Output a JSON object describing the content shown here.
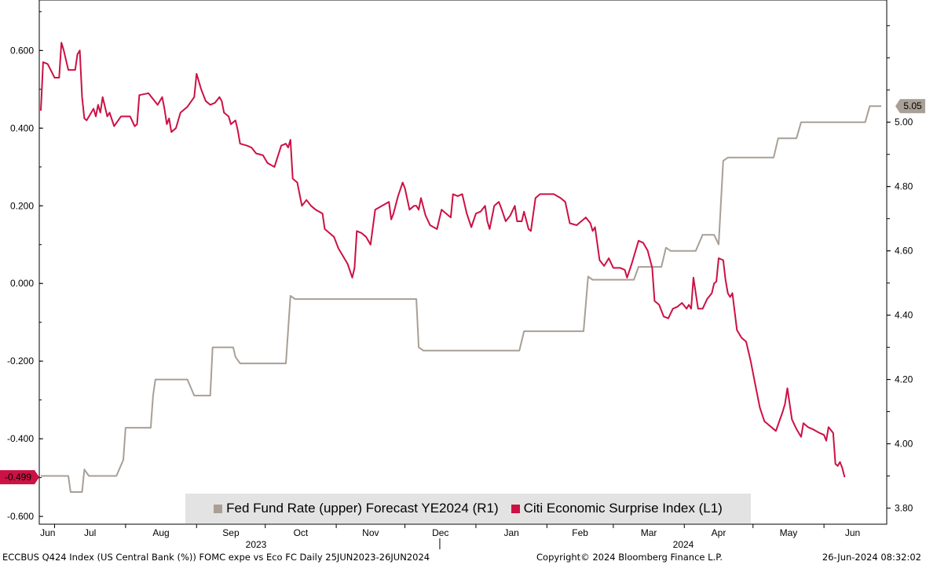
{
  "chart_data": {
    "type": "line",
    "left_axis": {
      "ylim": [
        -0.62,
        0.73
      ],
      "ticks": [
        "0.600",
        "0.400",
        "0.200",
        "0.000",
        "-0.200",
        "-0.400",
        "-0.600"
      ],
      "tick_values": [
        0.6,
        0.4,
        0.2,
        0.0,
        -0.2,
        -0.4,
        -0.6
      ]
    },
    "right_axis": {
      "ylim": [
        3.75,
        5.38
      ],
      "ticks": [
        "5.00",
        "4.80",
        "4.60",
        "4.40",
        "4.20",
        "4.00",
        "3.80"
      ],
      "tick_values": [
        5.0,
        4.8,
        4.6,
        4.4,
        4.2,
        4.0,
        3.8
      ]
    },
    "x_axis": {
      "months": [
        "Jun",
        "Jul",
        "Aug",
        "Sep",
        "Oct",
        "Nov",
        "Dec",
        "Jan",
        "Feb",
        "Mar",
        "Apr",
        "May",
        "Jun"
      ],
      "years": [
        "2023",
        "2024"
      ],
      "start": "2023-06-25",
      "end": "2024-06-26"
    },
    "series": [
      {
        "name": "Fed Fund Rate (upper) Forecast YE2024 (R1)",
        "axis": "right",
        "color": "#a89f96",
        "points": [
          [
            "2023-06-25",
            3.9
          ],
          [
            "2023-07-07",
            3.9
          ],
          [
            "2023-07-08",
            3.85
          ],
          [
            "2023-07-13",
            3.85
          ],
          [
            "2023-07-14",
            3.92
          ],
          [
            "2023-07-16",
            3.9
          ],
          [
            "2023-07-28",
            3.9
          ],
          [
            "2023-07-31",
            3.95
          ],
          [
            "2023-08-01",
            4.05
          ],
          [
            "2023-08-12",
            4.05
          ],
          [
            "2023-08-13",
            4.15
          ],
          [
            "2023-08-14",
            4.2
          ],
          [
            "2023-08-28",
            4.2
          ],
          [
            "2023-08-31",
            4.15
          ],
          [
            "2023-09-07",
            4.15
          ],
          [
            "2023-09-08",
            4.3
          ],
          [
            "2023-09-17",
            4.3
          ],
          [
            "2023-09-18",
            4.27
          ],
          [
            "2023-09-20",
            4.25
          ],
          [
            "2023-10-10",
            4.25
          ],
          [
            "2023-10-12",
            4.46
          ],
          [
            "2023-10-14",
            4.45
          ],
          [
            "2023-12-06",
            4.45
          ],
          [
            "2023-12-07",
            4.3
          ],
          [
            "2023-12-09",
            4.29
          ],
          [
            "2024-01-20",
            4.29
          ],
          [
            "2024-01-22",
            4.35
          ],
          [
            "2024-02-17",
            4.35
          ],
          [
            "2024-02-19",
            4.52
          ],
          [
            "2024-02-21",
            4.51
          ],
          [
            "2024-03-10",
            4.51
          ],
          [
            "2024-03-12",
            4.55
          ],
          [
            "2024-03-22",
            4.55
          ],
          [
            "2024-03-24",
            4.61
          ],
          [
            "2024-03-26",
            4.6
          ],
          [
            "2024-04-06",
            4.6
          ],
          [
            "2024-04-09",
            4.65
          ],
          [
            "2024-04-14",
            4.65
          ],
          [
            "2024-04-16",
            4.62
          ],
          [
            "2024-04-18",
            4.88
          ],
          [
            "2024-04-20",
            4.89
          ],
          [
            "2024-05-10",
            4.89
          ],
          [
            "2024-05-12",
            4.95
          ],
          [
            "2024-05-20",
            4.95
          ],
          [
            "2024-05-22",
            5.0
          ],
          [
            "2024-06-19",
            5.0
          ],
          [
            "2024-06-21",
            5.05
          ],
          [
            "2024-06-26",
            5.05
          ]
        ],
        "last_value_label": "5.05"
      },
      {
        "name": "Citi Economic Surprise Index (L1)",
        "axis": "left",
        "color": "#cc1144",
        "points": [
          [
            "2023-06-25",
            0.445
          ],
          [
            "2023-06-26",
            0.57
          ],
          [
            "2023-06-28",
            0.565
          ],
          [
            "2023-07-01",
            0.53
          ],
          [
            "2023-07-03",
            0.53
          ],
          [
            "2023-07-04",
            0.62
          ],
          [
            "2023-07-05",
            0.6
          ],
          [
            "2023-07-07",
            0.55
          ],
          [
            "2023-07-10",
            0.55
          ],
          [
            "2023-07-11",
            0.59
          ],
          [
            "2023-07-12",
            0.6
          ],
          [
            "2023-07-13",
            0.48
          ],
          [
            "2023-07-14",
            0.425
          ],
          [
            "2023-07-15",
            0.42
          ],
          [
            "2023-07-18",
            0.45
          ],
          [
            "2023-07-19",
            0.43
          ],
          [
            "2023-07-20",
            0.46
          ],
          [
            "2023-07-21",
            0.44
          ],
          [
            "2023-07-22",
            0.48
          ],
          [
            "2023-07-24",
            0.43
          ],
          [
            "2023-07-25",
            0.44
          ],
          [
            "2023-07-27",
            0.405
          ],
          [
            "2023-07-30",
            0.43
          ],
          [
            "2023-08-03",
            0.43
          ],
          [
            "2023-08-05",
            0.405
          ],
          [
            "2023-08-06",
            0.41
          ],
          [
            "2023-08-07",
            0.485
          ],
          [
            "2023-08-11",
            0.49
          ],
          [
            "2023-08-13",
            0.475
          ],
          [
            "2023-08-15",
            0.46
          ],
          [
            "2023-08-17",
            0.48
          ],
          [
            "2023-08-18",
            0.45
          ],
          [
            "2023-08-19",
            0.41
          ],
          [
            "2023-08-20",
            0.425
          ],
          [
            "2023-08-21",
            0.39
          ],
          [
            "2023-08-23",
            0.4
          ],
          [
            "2023-08-25",
            0.44
          ],
          [
            "2023-08-28",
            0.455
          ],
          [
            "2023-08-31",
            0.48
          ],
          [
            "2023-09-01",
            0.54
          ],
          [
            "2023-09-03",
            0.5
          ],
          [
            "2023-09-05",
            0.47
          ],
          [
            "2023-09-07",
            0.46
          ],
          [
            "2023-09-09",
            0.465
          ],
          [
            "2023-09-11",
            0.48
          ],
          [
            "2023-09-12",
            0.47
          ],
          [
            "2023-09-13",
            0.44
          ],
          [
            "2023-09-15",
            0.43
          ],
          [
            "2023-09-16",
            0.41
          ],
          [
            "2023-09-18",
            0.42
          ],
          [
            "2023-09-19",
            0.395
          ],
          [
            "2023-09-20",
            0.36
          ],
          [
            "2023-09-23",
            0.355
          ],
          [
            "2023-09-25",
            0.35
          ],
          [
            "2023-09-27",
            0.335
          ],
          [
            "2023-09-30",
            0.33
          ],
          [
            "2023-10-02",
            0.31
          ],
          [
            "2023-10-05",
            0.3
          ],
          [
            "2023-10-08",
            0.355
          ],
          [
            "2023-10-10",
            0.36
          ],
          [
            "2023-10-11",
            0.35
          ],
          [
            "2023-10-12",
            0.37
          ],
          [
            "2023-10-13",
            0.27
          ],
          [
            "2023-10-15",
            0.26
          ],
          [
            "2023-10-17",
            0.2
          ],
          [
            "2023-10-19",
            0.215
          ],
          [
            "2023-10-21",
            0.2
          ],
          [
            "2023-10-23",
            0.19
          ],
          [
            "2023-10-26",
            0.18
          ],
          [
            "2023-10-27",
            0.14
          ],
          [
            "2023-10-29",
            0.13
          ],
          [
            "2023-10-31",
            0.12
          ],
          [
            "2023-11-02",
            0.09
          ],
          [
            "2023-11-04",
            0.07
          ],
          [
            "2023-11-06",
            0.05
          ],
          [
            "2023-11-08",
            0.015
          ],
          [
            "2023-11-09",
            0.04
          ],
          [
            "2023-11-10",
            0.135
          ],
          [
            "2023-11-12",
            0.13
          ],
          [
            "2023-11-14",
            0.12
          ],
          [
            "2023-11-16",
            0.1
          ],
          [
            "2023-11-18",
            0.19
          ],
          [
            "2023-11-21",
            0.2
          ],
          [
            "2023-11-24",
            0.21
          ],
          [
            "2023-11-25",
            0.165
          ],
          [
            "2023-11-26",
            0.18
          ],
          [
            "2023-11-28",
            0.225
          ],
          [
            "2023-11-30",
            0.26
          ],
          [
            "2023-12-01",
            0.245
          ],
          [
            "2023-12-03",
            0.19
          ],
          [
            "2023-12-05",
            0.2
          ],
          [
            "2023-12-06",
            0.2
          ],
          [
            "2023-12-07",
            0.19
          ],
          [
            "2023-12-08",
            0.22
          ],
          [
            "2023-12-10",
            0.175
          ],
          [
            "2023-12-12",
            0.15
          ],
          [
            "2023-12-15",
            0.14
          ],
          [
            "2023-12-17",
            0.19
          ],
          [
            "2023-12-19",
            0.18
          ],
          [
            "2023-12-21",
            0.17
          ],
          [
            "2023-12-22",
            0.23
          ],
          [
            "2023-12-24",
            0.225
          ],
          [
            "2023-12-26",
            0.23
          ],
          [
            "2023-12-28",
            0.18
          ],
          [
            "2023-12-30",
            0.145
          ],
          [
            "2024-01-01",
            0.18
          ],
          [
            "2024-01-03",
            0.185
          ],
          [
            "2024-01-05",
            0.2
          ],
          [
            "2024-01-06",
            0.16
          ],
          [
            "2024-01-07",
            0.14
          ],
          [
            "2024-01-09",
            0.2
          ],
          [
            "2024-01-11",
            0.21
          ],
          [
            "2024-01-12",
            0.195
          ],
          [
            "2024-01-14",
            0.16
          ],
          [
            "2024-01-16",
            0.175
          ],
          [
            "2024-01-18",
            0.2
          ],
          [
            "2024-01-19",
            0.16
          ],
          [
            "2024-01-21",
            0.16
          ],
          [
            "2024-01-22",
            0.185
          ],
          [
            "2024-01-24",
            0.14
          ],
          [
            "2024-01-25",
            0.135
          ],
          [
            "2024-01-27",
            0.22
          ],
          [
            "2024-01-29",
            0.23
          ],
          [
            "2024-02-01",
            0.23
          ],
          [
            "2024-02-04",
            0.23
          ],
          [
            "2024-02-07",
            0.22
          ],
          [
            "2024-02-09",
            0.21
          ],
          [
            "2024-02-11",
            0.155
          ],
          [
            "2024-02-14",
            0.15
          ],
          [
            "2024-02-16",
            0.16
          ],
          [
            "2024-02-18",
            0.17
          ],
          [
            "2024-02-20",
            0.155
          ],
          [
            "2024-02-21",
            0.135
          ],
          [
            "2024-02-22",
            0.145
          ],
          [
            "2024-02-24",
            0.06
          ],
          [
            "2024-02-26",
            0.045
          ],
          [
            "2024-02-28",
            0.065
          ],
          [
            "2024-03-01",
            0.04
          ],
          [
            "2024-03-04",
            0.04
          ],
          [
            "2024-03-06",
            0.035
          ],
          [
            "2024-03-07",
            0.015
          ],
          [
            "2024-03-09",
            0.05
          ],
          [
            "2024-03-12",
            0.11
          ],
          [
            "2024-03-14",
            0.105
          ],
          [
            "2024-03-16",
            0.085
          ],
          [
            "2024-03-18",
            0.04
          ],
          [
            "2024-03-19",
            -0.045
          ],
          [
            "2024-03-21",
            -0.055
          ],
          [
            "2024-03-23",
            -0.085
          ],
          [
            "2024-03-25",
            -0.09
          ],
          [
            "2024-03-27",
            -0.065
          ],
          [
            "2024-03-29",
            -0.06
          ],
          [
            "2024-03-31",
            -0.05
          ],
          [
            "2024-04-02",
            -0.065
          ],
          [
            "2024-04-03",
            -0.055
          ],
          [
            "2024-04-04",
            -0.065
          ],
          [
            "2024-04-05",
            0.015
          ],
          [
            "2024-04-07",
            -0.065
          ],
          [
            "2024-04-09",
            -0.065
          ],
          [
            "2024-04-11",
            -0.04
          ],
          [
            "2024-04-13",
            -0.025
          ],
          [
            "2024-04-14",
            0.0
          ],
          [
            "2024-04-15",
            0.005
          ],
          [
            "2024-04-16",
            0.065
          ],
          [
            "2024-04-18",
            0.06
          ],
          [
            "2024-04-19",
            0.01
          ],
          [
            "2024-04-20",
            -0.025
          ],
          [
            "2024-04-21",
            -0.035
          ],
          [
            "2024-04-22",
            -0.025
          ],
          [
            "2024-04-24",
            -0.12
          ],
          [
            "2024-04-26",
            -0.14
          ],
          [
            "2024-04-28",
            -0.15
          ],
          [
            "2024-04-30",
            -0.2
          ],
          [
            "2024-05-02",
            -0.26
          ],
          [
            "2024-05-04",
            -0.32
          ],
          [
            "2024-05-06",
            -0.355
          ],
          [
            "2024-05-09",
            -0.37
          ],
          [
            "2024-05-11",
            -0.38
          ],
          [
            "2024-05-14",
            -0.33
          ],
          [
            "2024-05-15",
            -0.31
          ],
          [
            "2024-05-16",
            -0.27
          ],
          [
            "2024-05-18",
            -0.35
          ],
          [
            "2024-05-20",
            -0.375
          ],
          [
            "2024-05-22",
            -0.395
          ],
          [
            "2024-05-23",
            -0.36
          ],
          [
            "2024-05-25",
            -0.37
          ],
          [
            "2024-05-27",
            -0.375
          ],
          [
            "2024-05-30",
            -0.385
          ],
          [
            "2024-06-01",
            -0.39
          ],
          [
            "2024-06-02",
            -0.405
          ],
          [
            "2024-06-03",
            -0.37
          ],
          [
            "2024-06-05",
            -0.385
          ],
          [
            "2024-06-06",
            -0.465
          ],
          [
            "2024-06-07",
            -0.47
          ],
          [
            "2024-06-08",
            -0.46
          ],
          [
            "2024-06-09",
            -0.475
          ],
          [
            "2024-06-10",
            -0.499
          ]
        ],
        "last_value_label": "-0.499"
      }
    ],
    "grid": false,
    "legend_placement": "bottom-center"
  },
  "legend": {
    "items": [
      {
        "label": "Fed Fund Rate (upper) Forecast YE2024 (R1)",
        "color": "#a89f96"
      },
      {
        "label": "Citi Economic Surprise Index (L1)",
        "color": "#cc1144"
      }
    ]
  },
  "footer": {
    "left": "ECCBUS Q424 Index (US Central Bank (%)) FOMC expe vs Eco FC  Daily 25JUN2023-26JUN2024",
    "middle": "Copyright© 2024 Bloomberg Finance L.P.",
    "right": "26-Jun-2024 08:32:02"
  }
}
